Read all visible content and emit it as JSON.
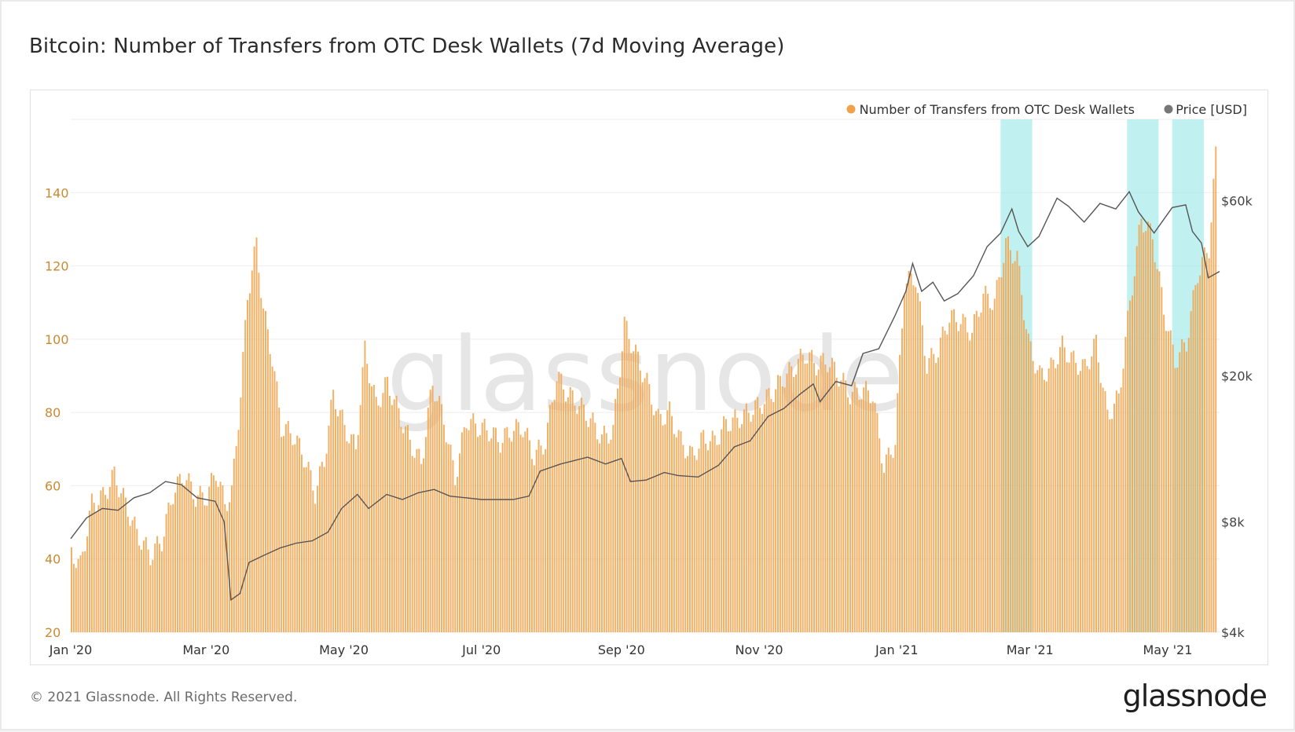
{
  "title": "Bitcoin: Number of Transfers from OTC Desk Wallets (7d Moving Average)",
  "footer": "© 2021 Glassnode. All Rights Reserved.",
  "brand": "glassnode",
  "watermark": "glassnode",
  "colors": {
    "bars": "#f0a24a",
    "price_line": "#555555",
    "highlight": "#8de6e3",
    "left_axis_text": "#c98a33",
    "right_axis_text": "#444444"
  },
  "chart_data": {
    "type": "bar",
    "title": "Bitcoin: Number of Transfers from OTC Desk Wallets (7d Moving Average)",
    "legend": {
      "placement": "top-right",
      "entries": [
        "Number of Transfers from OTC Desk Wallets",
        "Price [USD]"
      ]
    },
    "grid": true,
    "x_range": [
      "2020-01-01",
      "2021-05-24"
    ],
    "x_tick_labels": [
      {
        "date": "2020-01-01",
        "label": "Jan '20"
      },
      {
        "date": "2020-03-01",
        "label": "Mar '20"
      },
      {
        "date": "2020-05-01",
        "label": "May '20"
      },
      {
        "date": "2020-07-01",
        "label": "Jul '20"
      },
      {
        "date": "2020-09-01",
        "label": "Sep '20"
      },
      {
        "date": "2020-11-01",
        "label": "Nov '20"
      },
      {
        "date": "2021-01-01",
        "label": "Jan '21"
      },
      {
        "date": "2021-03-01",
        "label": "Mar '21"
      },
      {
        "date": "2021-05-01",
        "label": "May '21"
      }
    ],
    "y_left": {
      "ylim": [
        20,
        160
      ],
      "ticks": [
        20,
        40,
        60,
        80,
        100,
        120,
        140
      ]
    },
    "y_right": {
      "scale": "log",
      "ylim": [
        4000,
        100000
      ],
      "ticks": [
        4000,
        8000,
        20000,
        60000
      ],
      "tick_labels": [
        "$4k",
        "$8k",
        "$20k",
        "$60k"
      ]
    },
    "highlights": [
      {
        "start": "2021-02-16",
        "end": "2021-03-02"
      },
      {
        "start": "2021-04-13",
        "end": "2021-04-27"
      },
      {
        "start": "2021-05-03",
        "end": "2021-05-17"
      }
    ],
    "series": [
      {
        "name": "Number of Transfers from OTC Desk Wallets",
        "kind": "bar",
        "points": [
          [
            "2020-01-01",
            42
          ],
          [
            "2020-01-05",
            38
          ],
          [
            "2020-01-10",
            55
          ],
          [
            "2020-01-15",
            57
          ],
          [
            "2020-01-20",
            63
          ],
          [
            "2020-01-25",
            55
          ],
          [
            "2020-01-30",
            47
          ],
          [
            "2020-02-05",
            41
          ],
          [
            "2020-02-10",
            45
          ],
          [
            "2020-02-15",
            58
          ],
          [
            "2020-02-20",
            63
          ],
          [
            "2020-02-25",
            57
          ],
          [
            "2020-03-01",
            57
          ],
          [
            "2020-03-05",
            64
          ],
          [
            "2020-03-09",
            55
          ],
          [
            "2020-03-12",
            58
          ],
          [
            "2020-03-16",
            85
          ],
          [
            "2020-03-19",
            112
          ],
          [
            "2020-03-23",
            126
          ],
          [
            "2020-03-26",
            108
          ],
          [
            "2020-03-30",
            95
          ],
          [
            "2020-04-03",
            76
          ],
          [
            "2020-04-08",
            74
          ],
          [
            "2020-04-13",
            68
          ],
          [
            "2020-04-18",
            58
          ],
          [
            "2020-04-22",
            67
          ],
          [
            "2020-04-26",
            85
          ],
          [
            "2020-05-01",
            76
          ],
          [
            "2020-05-06",
            70
          ],
          [
            "2020-05-10",
            97
          ],
          [
            "2020-05-15",
            82
          ],
          [
            "2020-05-20",
            88
          ],
          [
            "2020-05-25",
            80
          ],
          [
            "2020-05-30",
            72
          ],
          [
            "2020-06-04",
            66
          ],
          [
            "2020-06-09",
            88
          ],
          [
            "2020-06-14",
            78
          ],
          [
            "2020-06-19",
            62
          ],
          [
            "2020-06-24",
            78
          ],
          [
            "2020-06-29",
            76
          ],
          [
            "2020-07-04",
            75
          ],
          [
            "2020-07-09",
            72
          ],
          [
            "2020-07-14",
            75
          ],
          [
            "2020-07-19",
            76
          ],
          [
            "2020-07-24",
            68
          ],
          [
            "2020-07-29",
            72
          ],
          [
            "2020-08-03",
            90
          ],
          [
            "2020-08-08",
            85
          ],
          [
            "2020-08-13",
            82
          ],
          [
            "2020-08-18",
            78
          ],
          [
            "2020-08-23",
            73
          ],
          [
            "2020-08-28",
            75
          ],
          [
            "2020-09-02",
            104
          ],
          [
            "2020-09-07",
            96
          ],
          [
            "2020-09-12",
            88
          ],
          [
            "2020-09-17",
            78
          ],
          [
            "2020-09-22",
            80
          ],
          [
            "2020-09-27",
            72
          ],
          [
            "2020-10-02",
            68
          ],
          [
            "2020-10-07",
            73
          ],
          [
            "2020-10-12",
            72
          ],
          [
            "2020-10-17",
            77
          ],
          [
            "2020-10-22",
            78
          ],
          [
            "2020-10-27",
            80
          ],
          [
            "2020-11-01",
            82
          ],
          [
            "2020-11-06",
            85
          ],
          [
            "2020-11-11",
            89
          ],
          [
            "2020-11-16",
            92
          ],
          [
            "2020-11-21",
            96
          ],
          [
            "2020-11-26",
            93
          ],
          [
            "2020-12-01",
            94
          ],
          [
            "2020-12-06",
            90
          ],
          [
            "2020-12-11",
            85
          ],
          [
            "2020-12-16",
            86
          ],
          [
            "2020-12-21",
            85
          ],
          [
            "2020-12-26",
            65
          ],
          [
            "2020-12-31",
            72
          ],
          [
            "2021-01-04",
            115
          ],
          [
            "2021-01-09",
            117
          ],
          [
            "2021-01-14",
            93
          ],
          [
            "2021-01-19",
            97
          ],
          [
            "2021-01-24",
            106
          ],
          [
            "2021-01-29",
            105
          ],
          [
            "2021-02-03",
            102
          ],
          [
            "2021-02-08",
            112
          ],
          [
            "2021-02-13",
            110
          ],
          [
            "2021-02-18",
            126
          ],
          [
            "2021-02-23",
            122
          ],
          [
            "2021-02-28",
            99
          ],
          [
            "2021-03-05",
            90
          ],
          [
            "2021-03-10",
            92
          ],
          [
            "2021-03-15",
            98
          ],
          [
            "2021-03-20",
            94
          ],
          [
            "2021-03-25",
            92
          ],
          [
            "2021-03-30",
            99
          ],
          [
            "2021-04-04",
            79
          ],
          [
            "2021-04-09",
            84
          ],
          [
            "2021-04-14",
            110
          ],
          [
            "2021-04-19",
            133
          ],
          [
            "2021-04-24",
            128
          ],
          [
            "2021-04-29",
            108
          ],
          [
            "2021-05-04",
            94
          ],
          [
            "2021-05-09",
            99
          ],
          [
            "2021-05-14",
            118
          ],
          [
            "2021-05-19",
            125
          ],
          [
            "2021-05-22",
            150
          ]
        ]
      },
      {
        "name": "Price [USD]",
        "kind": "line",
        "points": [
          [
            "2020-01-01",
            7200
          ],
          [
            "2020-01-08",
            8200
          ],
          [
            "2020-01-15",
            8700
          ],
          [
            "2020-01-22",
            8600
          ],
          [
            "2020-01-29",
            9300
          ],
          [
            "2020-02-05",
            9600
          ],
          [
            "2020-02-12",
            10300
          ],
          [
            "2020-02-19",
            10100
          ],
          [
            "2020-02-26",
            9300
          ],
          [
            "2020-03-05",
            9100
          ],
          [
            "2020-03-09",
            8000
          ],
          [
            "2020-03-12",
            4900
          ],
          [
            "2020-03-16",
            5100
          ],
          [
            "2020-03-20",
            6200
          ],
          [
            "2020-03-27",
            6500
          ],
          [
            "2020-04-03",
            6800
          ],
          [
            "2020-04-10",
            7000
          ],
          [
            "2020-04-17",
            7100
          ],
          [
            "2020-04-24",
            7500
          ],
          [
            "2020-04-30",
            8700
          ],
          [
            "2020-05-07",
            9500
          ],
          [
            "2020-05-12",
            8700
          ],
          [
            "2020-05-20",
            9500
          ],
          [
            "2020-05-27",
            9200
          ],
          [
            "2020-06-03",
            9600
          ],
          [
            "2020-06-10",
            9800
          ],
          [
            "2020-06-17",
            9400
          ],
          [
            "2020-06-24",
            9300
          ],
          [
            "2020-07-01",
            9200
          ],
          [
            "2020-07-15",
            9200
          ],
          [
            "2020-07-22",
            9400
          ],
          [
            "2020-07-27",
            11000
          ],
          [
            "2020-08-05",
            11500
          ],
          [
            "2020-08-17",
            12000
          ],
          [
            "2020-08-25",
            11500
          ],
          [
            "2020-09-01",
            11900
          ],
          [
            "2020-09-05",
            10300
          ],
          [
            "2020-09-12",
            10400
          ],
          [
            "2020-09-20",
            10900
          ],
          [
            "2020-09-26",
            10700
          ],
          [
            "2020-10-05",
            10600
          ],
          [
            "2020-10-14",
            11400
          ],
          [
            "2020-10-21",
            12800
          ],
          [
            "2020-10-28",
            13300
          ],
          [
            "2020-11-05",
            15500
          ],
          [
            "2020-11-12",
            16300
          ],
          [
            "2020-11-19",
            17800
          ],
          [
            "2020-11-25",
            19000
          ],
          [
            "2020-11-28",
            17000
          ],
          [
            "2020-12-05",
            19300
          ],
          [
            "2020-12-12",
            18800
          ],
          [
            "2020-12-17",
            23000
          ],
          [
            "2020-12-24",
            23700
          ],
          [
            "2020-12-31",
            29000
          ],
          [
            "2021-01-05",
            34000
          ],
          [
            "2021-01-08",
            40500
          ],
          [
            "2021-01-12",
            34000
          ],
          [
            "2021-01-17",
            36000
          ],
          [
            "2021-01-22",
            32000
          ],
          [
            "2021-01-28",
            33500
          ],
          [
            "2021-02-04",
            37500
          ],
          [
            "2021-02-10",
            45000
          ],
          [
            "2021-02-16",
            49000
          ],
          [
            "2021-02-21",
            57000
          ],
          [
            "2021-02-24",
            49500
          ],
          [
            "2021-02-28",
            45000
          ],
          [
            "2021-03-05",
            48000
          ],
          [
            "2021-03-13",
            61000
          ],
          [
            "2021-03-18",
            58000
          ],
          [
            "2021-03-25",
            52500
          ],
          [
            "2021-04-01",
            59000
          ],
          [
            "2021-04-08",
            57000
          ],
          [
            "2021-04-14",
            63500
          ],
          [
            "2021-04-18",
            56000
          ],
          [
            "2021-04-25",
            49000
          ],
          [
            "2021-05-03",
            57500
          ],
          [
            "2021-05-09",
            58500
          ],
          [
            "2021-05-12",
            49500
          ],
          [
            "2021-05-16",
            46000
          ],
          [
            "2021-05-19",
            37000
          ],
          [
            "2021-05-24",
            38500
          ]
        ]
      }
    ]
  }
}
